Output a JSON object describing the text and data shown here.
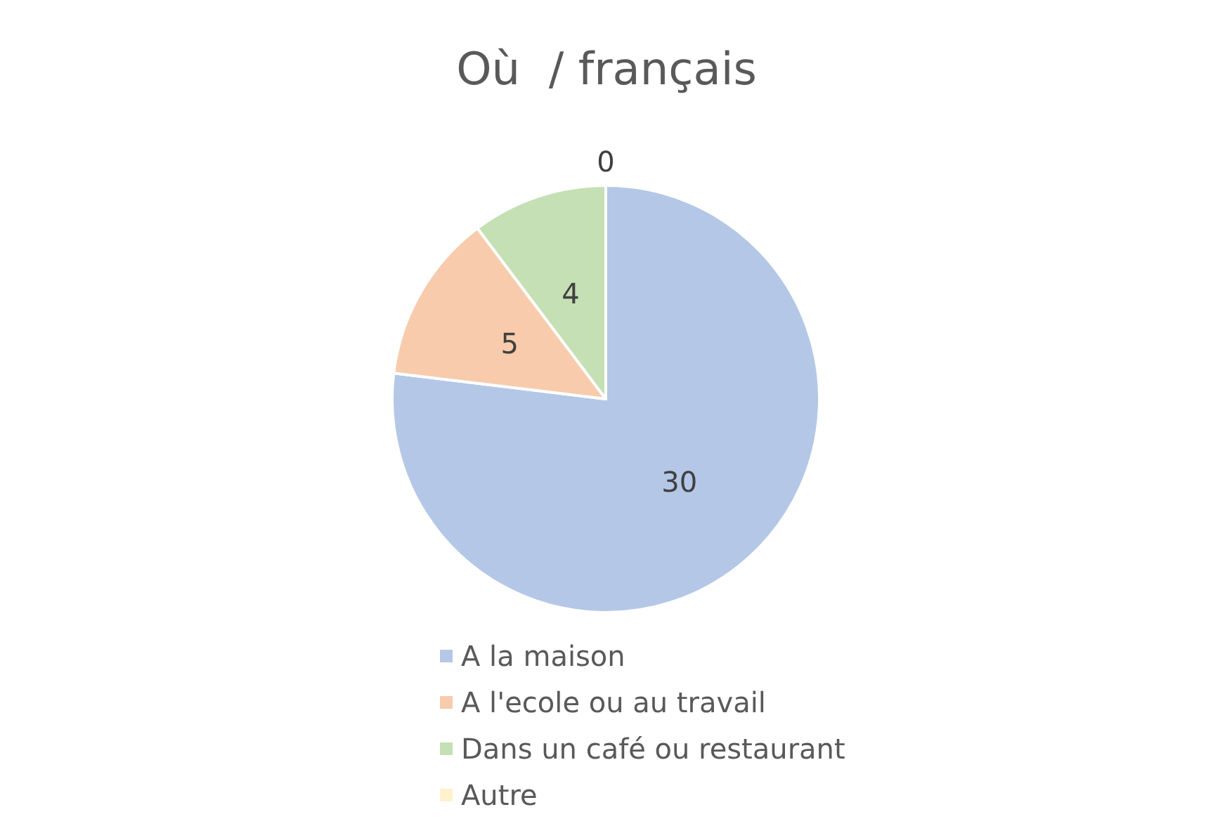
{
  "chart_data": {
    "type": "pie",
    "title": "Où  / français",
    "categories": [
      "A la maison",
      "A l'ecole ou au travail",
      "Dans un café ou restaurant",
      "Autre"
    ],
    "values": [
      30,
      5,
      4,
      0
    ],
    "colors": [
      "#b4c7e7",
      "#f8cbad",
      "#c5e0b4",
      "#fff2cc"
    ],
    "value_labels": [
      "30",
      "5",
      "4",
      "0"
    ],
    "legend": "bottom"
  }
}
